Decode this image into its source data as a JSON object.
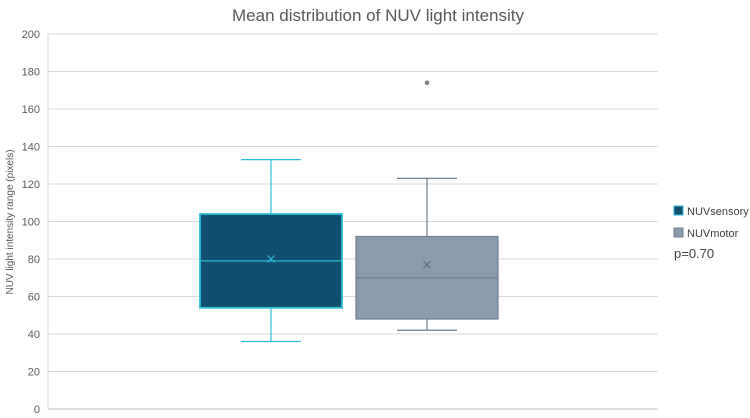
{
  "chart_data": {
    "type": "box",
    "title": "Mean distribution of NUV light intensity",
    "xlabel": "",
    "ylabel": "NUV light intensity range (pixels)",
    "ylim": [
      0,
      200
    ],
    "yticks": [
      "0",
      "20",
      "40",
      "60",
      "80",
      "100",
      "120",
      "140",
      "160",
      "180",
      "200"
    ],
    "grid": true,
    "legend_position": "right",
    "annotation": "p=0.70",
    "series": [
      {
        "name": "NUVsensory",
        "color": "#124f6e",
        "edge_color": "#2bbcd6",
        "whisker_low": 36,
        "q1": 54,
        "median": 79,
        "mean": 80,
        "q3": 104,
        "whisker_high": 133,
        "outliers": []
      },
      {
        "name": "NUVmotor",
        "color": "#8a9bad",
        "edge_color": "#6e7f90",
        "whisker_low": 42,
        "q1": 48,
        "median": 70,
        "mean": 77,
        "q3": 92,
        "whisker_high": 123,
        "outliers": [
          174
        ]
      }
    ]
  }
}
